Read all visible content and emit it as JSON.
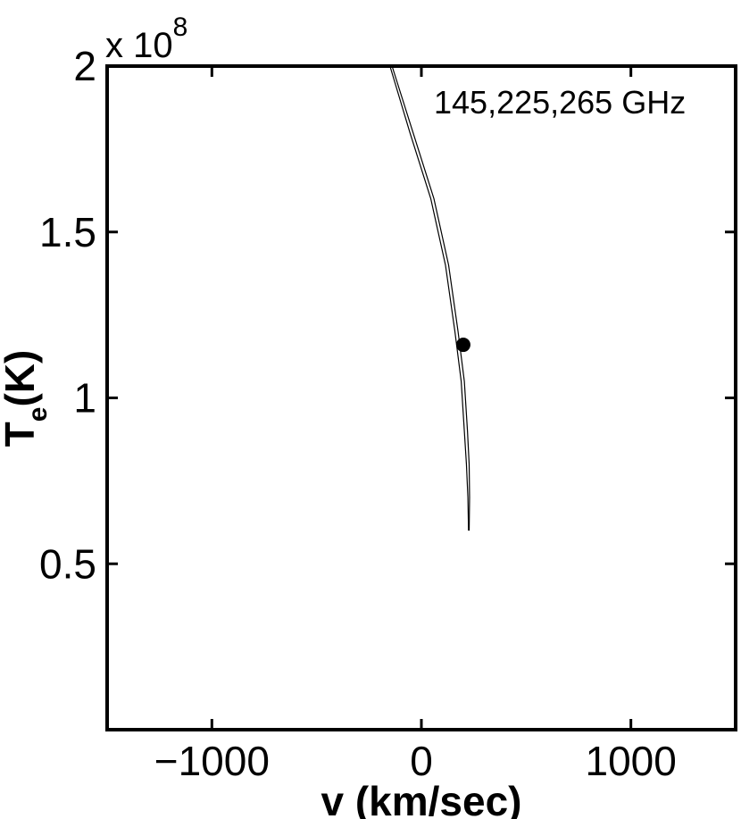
{
  "chart_data": {
    "type": "line",
    "title": "",
    "xlabel": "v (km/sec)",
    "ylabel": {
      "main": "T",
      "sub": "e",
      "unit": "(K)"
    },
    "xlim": [
      -1500,
      1500
    ],
    "ylim": [
      0,
      200000000
    ],
    "x_ticks": [
      -1000,
      0,
      1000
    ],
    "x_tick_labels": [
      "−1000",
      "0",
      "1000"
    ],
    "y_ticks": [
      50000000,
      100000000,
      150000000,
      200000000
    ],
    "y_tick_labels": [
      "0.5",
      "1",
      "1.5",
      "2"
    ],
    "y_multiplier": {
      "base": "x 10",
      "exponent": "8"
    },
    "grid": false,
    "annotation": "145,225,265 GHz",
    "series": [
      {
        "x": [
          -140,
          -40,
          60,
          130,
          175,
          205,
          220,
          228,
          230,
          228
        ],
        "y": [
          200000000,
          180000000,
          160000000,
          140000000,
          120000000,
          105000000,
          90000000,
          80000000,
          70000000,
          60000000
        ]
      },
      {
        "x": [
          -150,
          -55,
          45,
          115,
          160,
          190,
          205,
          215,
          222,
          225
        ],
        "y": [
          200000000,
          180000000,
          160000000,
          140000000,
          120000000,
          105000000,
          90000000,
          80000000,
          70000000,
          60000000
        ]
      }
    ],
    "point": {
      "x": 200,
      "y": 116000000
    },
    "colors": {
      "line": "#000000",
      "point": "#000000",
      "axes": "#000000",
      "background": "#ffffff"
    }
  }
}
